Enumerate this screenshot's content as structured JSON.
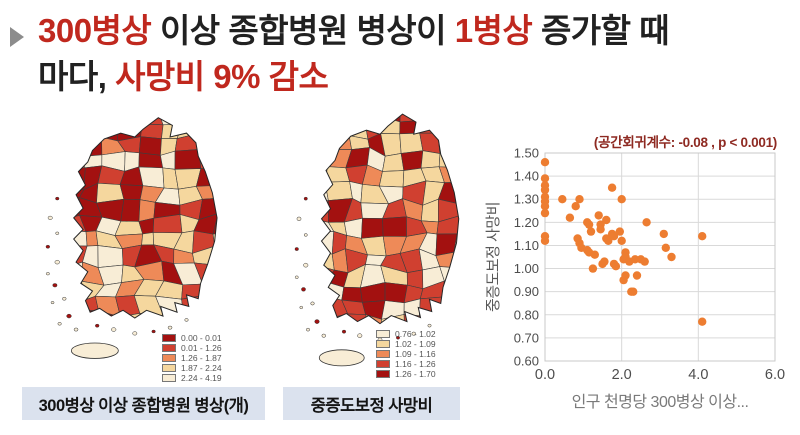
{
  "slide": {
    "bullet_icon": "triangle-right-icon",
    "colors": {
      "accent_red": "#c0281e",
      "text_black": "#212121",
      "caption_bg": "#dbe2ee",
      "bullet_gray": "#8c8c8c",
      "annotation_red": "#8e2a22"
    },
    "title": {
      "line1": [
        {
          "text": "300병상",
          "color": "#c0281e"
        },
        {
          "text": " 이상 종합병원 병상이 ",
          "color": "#212121"
        },
        {
          "text": "1병상",
          "color": "#c0281e"
        },
        {
          "text": " 증가할 때",
          "color": "#212121"
        }
      ],
      "line2": [
        {
          "text": "마다, ",
          "color": "#212121"
        },
        {
          "text": "사망비 9% 감소",
          "color": "#c0281e"
        }
      ]
    }
  },
  "chart_data": [
    {
      "type": "heatmap",
      "subtype": "choropleth-map-south-korea",
      "title": "300병상 이상 종합병원 병상(개)",
      "legend_position": "bottom-right",
      "legend_bins": [
        {
          "range": "0.00 - 0.01",
          "color": "#a31110"
        },
        {
          "range": "0.01 - 1.26",
          "color": "#d04030"
        },
        {
          "range": "1.26 - 1.87",
          "color": "#ee8a58"
        },
        {
          "range": "1.87 - 2.24",
          "color": "#f5d79e"
        },
        {
          "range": "2.24 - 4.19",
          "color": "#f8edd6"
        }
      ]
    },
    {
      "type": "heatmap",
      "subtype": "choropleth-map-south-korea",
      "title": "중증도보정 사망비",
      "legend_position": "bottom-right",
      "legend_bins": [
        {
          "range": "0.76 - 1.02",
          "color": "#f8edd6"
        },
        {
          "range": "1.02 - 1.09",
          "color": "#f5d79e"
        },
        {
          "range": "1.09 - 1.16",
          "color": "#ee8a58"
        },
        {
          "range": "1.16 - 1.26",
          "color": "#d04030"
        },
        {
          "range": "1.26 - 1.70",
          "color": "#a31110"
        }
      ]
    },
    {
      "type": "scatter",
      "title": "(공간회귀계수: -0.08 , p < 0.001)",
      "xlabel": "인구 천명당 300병상 이상...",
      "ylabel": "중증도보정 사망비",
      "xlim": [
        0,
        6
      ],
      "ylim": [
        0.6,
        1.5
      ],
      "x_ticks": [
        "0.0",
        "2.0",
        "4.0",
        "6.0"
      ],
      "y_ticks": [
        "0.60",
        "0.70",
        "0.80",
        "0.90",
        "1.00",
        "1.10",
        "1.20",
        "1.30",
        "1.40",
        "1.50"
      ],
      "grid": true,
      "point_color": "#ed7d31",
      "points": [
        [
          0,
          1.46
        ],
        [
          0,
          1.39
        ],
        [
          0,
          1.36
        ],
        [
          0,
          1.34
        ],
        [
          0,
          1.31
        ],
        [
          0,
          1.29
        ],
        [
          0,
          1.27
        ],
        [
          0,
          1.24
        ],
        [
          0,
          1.14
        ],
        [
          0,
          1.12
        ],
        [
          0.45,
          1.3
        ],
        [
          0.65,
          1.22
        ],
        [
          0.8,
          1.27
        ],
        [
          0.9,
          1.3
        ],
        [
          0.85,
          1.13
        ],
        [
          0.9,
          1.11
        ],
        [
          0.95,
          1.09
        ],
        [
          1.1,
          1.2
        ],
        [
          1.15,
          1.19
        ],
        [
          1.1,
          1.08
        ],
        [
          1.15,
          1.07
        ],
        [
          1.2,
          1.16
        ],
        [
          1.25,
          1.0
        ],
        [
          1.3,
          1.06
        ],
        [
          1.4,
          1.23
        ],
        [
          1.45,
          1.19
        ],
        [
          1.45,
          1.17
        ],
        [
          1.5,
          1.02
        ],
        [
          1.55,
          1.03
        ],
        [
          1.6,
          1.21
        ],
        [
          1.6,
          1.13
        ],
        [
          1.65,
          1.12
        ],
        [
          1.75,
          1.35
        ],
        [
          1.75,
          1.15
        ],
        [
          1.8,
          1.14
        ],
        [
          1.8,
          1.02
        ],
        [
          1.85,
          1.01
        ],
        [
          1.95,
          1.16
        ],
        [
          2.0,
          1.3
        ],
        [
          2.0,
          1.12
        ],
        [
          2.05,
          1.04
        ],
        [
          2.1,
          1.07
        ],
        [
          2.1,
          1.05
        ],
        [
          2.1,
          0.97
        ],
        [
          2.05,
          0.95
        ],
        [
          2.2,
          1.03
        ],
        [
          2.25,
          0.9
        ],
        [
          2.3,
          0.9
        ],
        [
          2.35,
          1.04
        ],
        [
          2.4,
          0.97
        ],
        [
          2.5,
          1.04
        ],
        [
          2.6,
          1.03
        ],
        [
          2.65,
          1.2
        ],
        [
          3.1,
          1.15
        ],
        [
          3.15,
          1.09
        ],
        [
          3.3,
          1.05
        ],
        [
          4.1,
          1.14
        ],
        [
          4.1,
          0.77
        ]
      ]
    }
  ]
}
